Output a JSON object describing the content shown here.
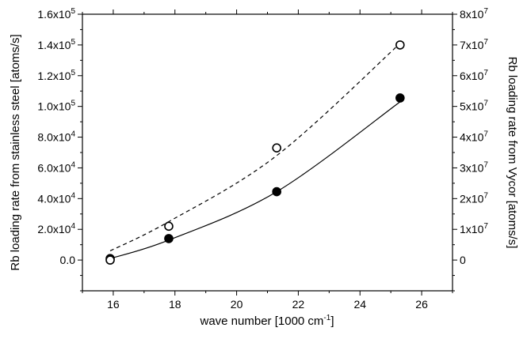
{
  "chart_data": {
    "type": "scatter",
    "title": "",
    "xlabel": {
      "base": "wave number [1000 cm",
      "sup": "-1",
      "end": "]"
    },
    "ylabel_left": "Rb loading rate from stainless steel [atoms/s]",
    "ylabel_right": "Rb loading rate from Vycor [atoms/s]",
    "xlim": [
      15,
      27
    ],
    "ylim_left": [
      -20000,
      160000
    ],
    "ylim_right": [
      -10000000,
      80000000
    ],
    "x_ticks": [
      16,
      18,
      20,
      22,
      24,
      26
    ],
    "x_tick_labels": [
      "16",
      "18",
      "20",
      "22",
      "24",
      "26"
    ],
    "y_left_ticks": [
      0,
      20000,
      40000,
      60000,
      80000,
      100000,
      120000,
      140000,
      160000
    ],
    "y_left_tick_labels": [
      {
        "base": "0.0",
        "sup": ""
      },
      {
        "base": "2.0x10",
        "sup": "4"
      },
      {
        "base": "4.0x10",
        "sup": "4"
      },
      {
        "base": "6.0x10",
        "sup": "4"
      },
      {
        "base": "8.0x10",
        "sup": "4"
      },
      {
        "base": "1.0x10",
        "sup": "5"
      },
      {
        "base": "1.2x10",
        "sup": "5"
      },
      {
        "base": "1.4x10",
        "sup": "5"
      },
      {
        "base": "1.6x10",
        "sup": "5"
      }
    ],
    "y_right_ticks": [
      0,
      10000000,
      20000000,
      30000000,
      40000000,
      50000000,
      60000000,
      70000000,
      80000000
    ],
    "y_right_tick_labels": [
      {
        "base": "0",
        "sup": ""
      },
      {
        "base": "1x10",
        "sup": "7"
      },
      {
        "base": "2x10",
        "sup": "7"
      },
      {
        "base": "3x10",
        "sup": "7"
      },
      {
        "base": "4x10",
        "sup": "7"
      },
      {
        "base": "5x10",
        "sup": "7"
      },
      {
        "base": "6x10",
        "sup": "7"
      },
      {
        "base": "7x10",
        "sup": "7"
      },
      {
        "base": "8x10",
        "sup": "7"
      }
    ],
    "grid": false,
    "series": [
      {
        "axis": "left",
        "marker": "filled-circle",
        "x": [
          15.9,
          17.8,
          21.3,
          25.3
        ],
        "y": [
          1000,
          14000,
          44500,
          105500
        ],
        "fit": {
          "style": "solid",
          "x": [
            15.9,
            17.8,
            21.3,
            25.3
          ],
          "y": [
            1000,
            13000,
            44500,
            103000
          ]
        }
      },
      {
        "axis": "right",
        "marker": "open-circle",
        "x": [
          15.9,
          17.8,
          21.3,
          25.3
        ],
        "y": [
          0,
          11000000,
          36500000,
          70000000
        ],
        "fit": {
          "style": "dashed",
          "x": [
            15.9,
            17.8,
            21.3,
            25.3
          ],
          "y": [
            3000000,
            12500000,
            34000000,
            70500000
          ]
        }
      }
    ]
  }
}
